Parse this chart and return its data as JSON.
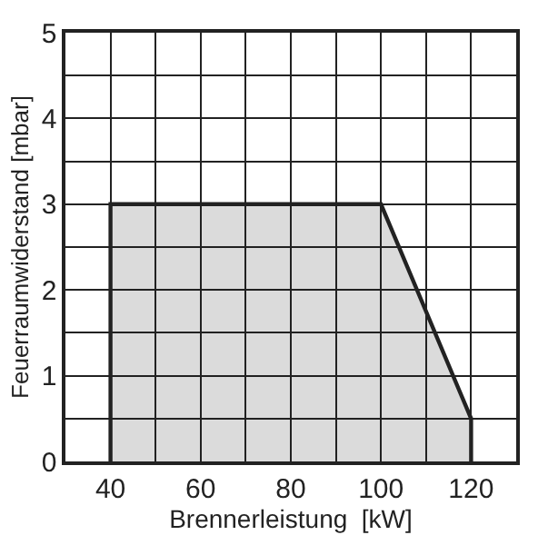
{
  "chart_data": {
    "type": "area",
    "xlabel": "Brennerleistung  [kW]",
    "ylabel": "Feuerraumwiderstand [mbar]",
    "series": [
      {
        "color": "#222222",
        "x": [
          40,
          40,
          100,
          120,
          120
        ],
        "values": [
          0,
          3,
          3,
          0.5,
          0
        ]
      }
    ],
    "xlim": [
      30,
      130
    ],
    "xticks": [
      40,
      {
        "value": 50,
        "label": null
      },
      60,
      {
        "value": 70,
        "label": null
      },
      80,
      {
        "value": 90,
        "label": null
      },
      100,
      {
        "value": 110,
        "label": null
      },
      120
    ],
    "ylim": [
      0,
      5
    ],
    "yticks": [
      0,
      {
        "value": 0.5,
        "label": null
      },
      1,
      {
        "value": 1.5,
        "label": null
      },
      2,
      {
        "value": 2.5,
        "label": null
      },
      3,
      {
        "value": 3.5,
        "label": null
      },
      4,
      {
        "value": 4.5,
        "label": null
      },
      5
    ],
    "grid": true
  }
}
